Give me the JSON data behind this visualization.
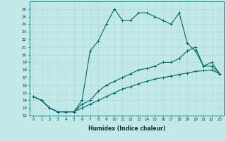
{
  "xlabel": "Humidex (Indice chaleur)",
  "background_color": "#c2e8e8",
  "line_color": "#006666",
  "xlim": [
    -0.5,
    23.5
  ],
  "ylim": [
    12,
    27
  ],
  "yticks": [
    12,
    13,
    14,
    15,
    16,
    17,
    18,
    19,
    20,
    21,
    22,
    23,
    24,
    25,
    26
  ],
  "xticks": [
    0,
    1,
    2,
    3,
    4,
    5,
    6,
    7,
    8,
    9,
    10,
    11,
    12,
    13,
    14,
    15,
    16,
    17,
    18,
    19,
    20,
    21,
    22,
    23
  ],
  "series1_x": [
    0,
    1,
    2,
    3,
    4,
    5,
    6,
    7,
    8,
    9,
    10,
    11,
    12,
    13,
    14,
    15,
    16,
    17,
    18,
    19,
    20,
    21,
    22,
    23
  ],
  "series1_y": [
    14.5,
    14.0,
    13.0,
    12.5,
    12.5,
    12.5,
    14.0,
    20.5,
    21.8,
    24.0,
    26.0,
    24.5,
    24.5,
    25.5,
    25.5,
    25.0,
    24.5,
    24.0,
    25.5,
    21.5,
    20.5,
    18.5,
    18.5,
    17.5
  ],
  "series2_x": [
    0,
    1,
    2,
    3,
    4,
    5,
    6,
    7,
    8,
    9,
    10,
    11,
    12,
    13,
    14,
    15,
    16,
    17,
    18,
    19,
    20,
    21,
    22,
    23
  ],
  "series2_y": [
    14.5,
    14.0,
    13.0,
    12.5,
    12.5,
    12.5,
    13.5,
    14.0,
    15.2,
    16.0,
    16.5,
    17.0,
    17.5,
    18.0,
    18.2,
    18.5,
    19.0,
    19.0,
    19.5,
    20.5,
    21.0,
    18.5,
    19.0,
    17.5
  ],
  "series3_x": [
    0,
    1,
    2,
    3,
    4,
    5,
    6,
    7,
    8,
    9,
    10,
    11,
    12,
    13,
    14,
    15,
    16,
    17,
    18,
    19,
    20,
    21,
    22,
    23
  ],
  "series3_y": [
    14.5,
    14.0,
    13.0,
    12.5,
    12.5,
    12.5,
    13.0,
    13.5,
    14.0,
    14.5,
    15.0,
    15.5,
    15.8,
    16.2,
    16.5,
    16.8,
    17.0,
    17.2,
    17.4,
    17.6,
    17.8,
    17.9,
    18.0,
    17.5
  ],
  "grid_color": "#a8d8d8",
  "marker": "+",
  "markersize": 3,
  "linewidth": 0.8
}
